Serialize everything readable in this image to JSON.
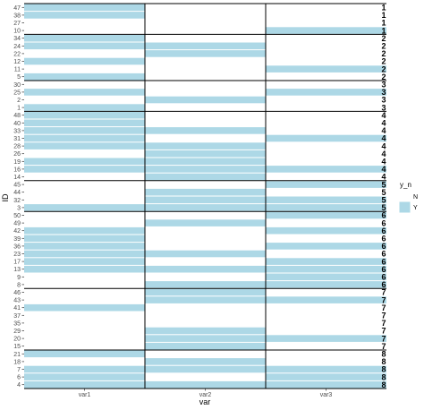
{
  "chart_data": {
    "type": "heatmap",
    "xlabel": "var",
    "ylabel": "ID",
    "x_categories": [
      "var1",
      "var2",
      "var3"
    ],
    "rows": [
      {
        "id": "47",
        "group": "1",
        "values": [
          "Y",
          "N",
          "N"
        ]
      },
      {
        "id": "38",
        "group": "1",
        "values": [
          "Y",
          "N",
          "N"
        ]
      },
      {
        "id": "27",
        "group": "1",
        "values": [
          "N",
          "N",
          "N"
        ]
      },
      {
        "id": "10",
        "group": "1",
        "values": [
          "N",
          "N",
          "Y"
        ]
      },
      {
        "id": "34",
        "group": "2",
        "values": [
          "Y",
          "N",
          "N"
        ]
      },
      {
        "id": "24",
        "group": "2",
        "values": [
          "Y",
          "Y",
          "N"
        ]
      },
      {
        "id": "22",
        "group": "2",
        "values": [
          "N",
          "Y",
          "N"
        ]
      },
      {
        "id": "12",
        "group": "2",
        "values": [
          "Y",
          "N",
          "N"
        ]
      },
      {
        "id": "11",
        "group": "2",
        "values": [
          "N",
          "N",
          "Y"
        ]
      },
      {
        "id": "5",
        "group": "2",
        "values": [
          "Y",
          "N",
          "N"
        ]
      },
      {
        "id": "30",
        "group": "3",
        "values": [
          "N",
          "N",
          "N"
        ]
      },
      {
        "id": "25",
        "group": "3",
        "values": [
          "Y",
          "N",
          "Y"
        ]
      },
      {
        "id": "2",
        "group": "3",
        "values": [
          "N",
          "Y",
          "N"
        ]
      },
      {
        "id": "1",
        "group": "3",
        "values": [
          "Y",
          "N",
          "N"
        ]
      },
      {
        "id": "48",
        "group": "4",
        "values": [
          "Y",
          "N",
          "N"
        ]
      },
      {
        "id": "40",
        "group": "4",
        "values": [
          "Y",
          "N",
          "N"
        ]
      },
      {
        "id": "33",
        "group": "4",
        "values": [
          "Y",
          "Y",
          "N"
        ]
      },
      {
        "id": "31",
        "group": "4",
        "values": [
          "Y",
          "N",
          "Y"
        ]
      },
      {
        "id": "28",
        "group": "4",
        "values": [
          "Y",
          "Y",
          "N"
        ]
      },
      {
        "id": "26",
        "group": "4",
        "values": [
          "N",
          "Y",
          "N"
        ]
      },
      {
        "id": "19",
        "group": "4",
        "values": [
          "Y",
          "Y",
          "N"
        ]
      },
      {
        "id": "16",
        "group": "4",
        "values": [
          "Y",
          "Y",
          "Y"
        ]
      },
      {
        "id": "14",
        "group": "4",
        "values": [
          "N",
          "Y",
          "N"
        ]
      },
      {
        "id": "45",
        "group": "5",
        "values": [
          "N",
          "N",
          "Y"
        ]
      },
      {
        "id": "44",
        "group": "5",
        "values": [
          "N",
          "Y",
          "N"
        ]
      },
      {
        "id": "32",
        "group": "5",
        "values": [
          "N",
          "Y",
          "Y"
        ]
      },
      {
        "id": "3",
        "group": "5",
        "values": [
          "Y",
          "Y",
          "Y"
        ]
      },
      {
        "id": "50",
        "group": "6",
        "values": [
          "N",
          "N",
          "Y"
        ]
      },
      {
        "id": "49",
        "group": "6",
        "values": [
          "N",
          "Y",
          "N"
        ]
      },
      {
        "id": "42",
        "group": "6",
        "values": [
          "Y",
          "N",
          "Y"
        ]
      },
      {
        "id": "39",
        "group": "6",
        "values": [
          "Y",
          "N",
          "N"
        ]
      },
      {
        "id": "36",
        "group": "6",
        "values": [
          "Y",
          "N",
          "Y"
        ]
      },
      {
        "id": "23",
        "group": "6",
        "values": [
          "Y",
          "Y",
          "N"
        ]
      },
      {
        "id": "17",
        "group": "6",
        "values": [
          "Y",
          "N",
          "Y"
        ]
      },
      {
        "id": "13",
        "group": "6",
        "values": [
          "Y",
          "Y",
          "Y"
        ]
      },
      {
        "id": "9",
        "group": "6",
        "values": [
          "N",
          "N",
          "Y"
        ]
      },
      {
        "id": "8",
        "group": "6",
        "values": [
          "N",
          "Y",
          "Y"
        ]
      },
      {
        "id": "46",
        "group": "7",
        "values": [
          "N",
          "Y",
          "N"
        ]
      },
      {
        "id": "43",
        "group": "7",
        "values": [
          "N",
          "Y",
          "Y"
        ]
      },
      {
        "id": "41",
        "group": "7",
        "values": [
          "Y",
          "N",
          "N"
        ]
      },
      {
        "id": "37",
        "group": "7",
        "values": [
          "N",
          "N",
          "N"
        ]
      },
      {
        "id": "35",
        "group": "7",
        "values": [
          "N",
          "N",
          "N"
        ]
      },
      {
        "id": "29",
        "group": "7",
        "values": [
          "N",
          "Y",
          "N"
        ]
      },
      {
        "id": "20",
        "group": "7",
        "values": [
          "N",
          "Y",
          "Y"
        ]
      },
      {
        "id": "15",
        "group": "7",
        "values": [
          "N",
          "Y",
          "N"
        ]
      },
      {
        "id": "21",
        "group": "8",
        "values": [
          "Y",
          "N",
          "N"
        ]
      },
      {
        "id": "18",
        "group": "8",
        "values": [
          "N",
          "Y",
          "N"
        ]
      },
      {
        "id": "7",
        "group": "8",
        "values": [
          "Y",
          "Y",
          "Y"
        ]
      },
      {
        "id": "6",
        "group": "8",
        "values": [
          "Y",
          "N",
          "Y"
        ]
      },
      {
        "id": "4",
        "group": "8",
        "values": [
          "Y",
          "Y",
          "Y"
        ]
      }
    ],
    "legend": {
      "title": "y_n",
      "entries": [
        {
          "label": "N",
          "color": "#ffffff"
        },
        {
          "label": "Y",
          "color": "#add8e6"
        }
      ],
      "position": "right"
    },
    "colors": {
      "Y": "#add8e6",
      "N": "#ffffff",
      "separator": "#000000"
    },
    "grid": false
  }
}
